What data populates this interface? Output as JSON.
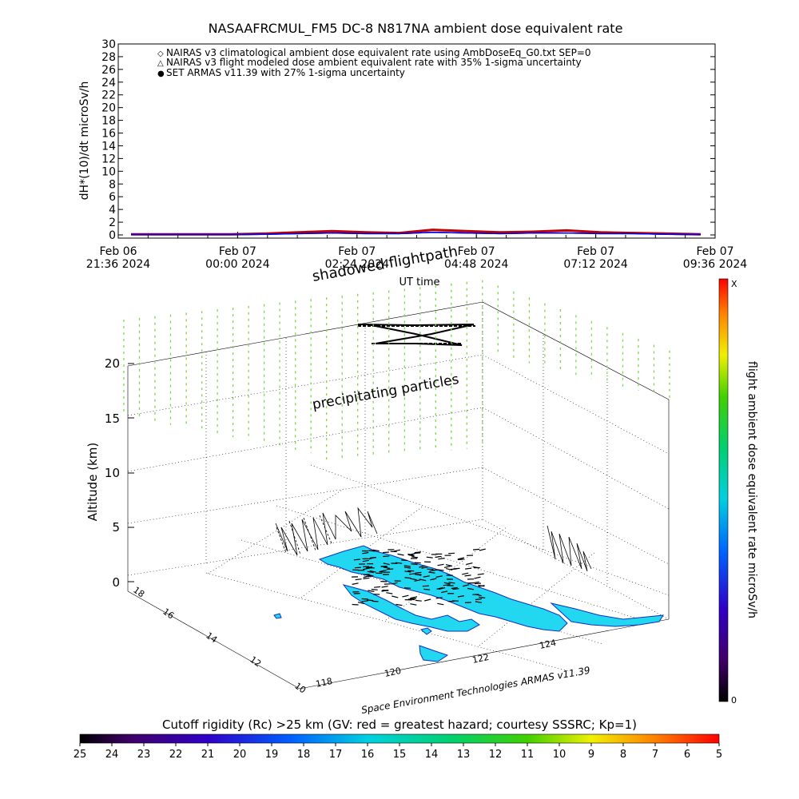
{
  "title": "NASAAFRCMUL_FM5 DC-8   N817NA ambient dose equivalent rate",
  "top_chart": {
    "ylabel": "dH*(10)/dt microSv/h",
    "xlabel": "UT time",
    "legend": [
      {
        "symbol": "◇",
        "color": "#c00000",
        "text": "NAIRAS v3 climatological ambient dose equivalent rate using AmbDoseEq_G0.txt SEP=0"
      },
      {
        "symbol": "△",
        "color": "#000000",
        "text": "NAIRAS v3 flight modeled dose ambient equivalent rate with 35% 1-sigma uncertainty"
      },
      {
        "symbol": "●",
        "color": "#0000ff",
        "text": "SET ARMAS v11.39 with 27% 1-sigma uncertainty"
      }
    ],
    "y_ticks": [
      "0",
      "2",
      "4",
      "6",
      "8",
      "10",
      "12",
      "14",
      "16",
      "18",
      "20",
      "22",
      "24",
      "26",
      "28",
      "30"
    ],
    "x_ticks": [
      {
        "line1": "Feb 06",
        "line2": "21:36 2024"
      },
      {
        "line1": "Feb 07",
        "line2": "00:00 2024"
      },
      {
        "line1": "Feb 07",
        "line2": "02:24 2024"
      },
      {
        "line1": "Feb 07",
        "line2": "04:48 2024"
      },
      {
        "line1": "Feb 07",
        "line2": "07:12 2024"
      },
      {
        "line1": "Feb 07",
        "line2": "09:36 2024"
      }
    ]
  },
  "chart_data": {
    "type": "line",
    "title": "NASAAFRCMUL_FM5 DC-8   N817NA ambient dose equivalent rate",
    "xlabel": "UT time",
    "ylabel": "dH*(10)/dt microSv/h",
    "ylim": [
      0,
      30
    ],
    "x": [
      "21:36",
      "22:30",
      "23:30",
      "00:30",
      "01:30",
      "02:24",
      "03:00",
      "03:40",
      "04:20",
      "04:48",
      "05:20",
      "06:00",
      "06:40",
      "07:12",
      "07:50",
      "08:30",
      "09:00",
      "09:30"
    ],
    "series": [
      {
        "name": "NAIRAS v3 climatological ambient dose equivalent rate using AmbDoseEq_G0.txt SEP=0",
        "values": [
          0.1,
          0.1,
          0.1,
          0.1,
          0.2,
          0.4,
          0.6,
          0.4,
          0.3,
          0.8,
          0.6,
          0.4,
          0.5,
          0.7,
          0.4,
          0.3,
          0.2,
          0.1
        ]
      },
      {
        "name": "NAIRAS v3 flight modeled dose ambient equivalent rate with 35% 1-sigma uncertainty",
        "values": [
          0.05,
          0.05,
          0.05,
          0.05,
          0.1,
          0.2,
          0.3,
          0.2,
          0.2,
          0.4,
          0.3,
          0.2,
          0.3,
          0.3,
          0.2,
          0.2,
          0.1,
          0.05
        ]
      },
      {
        "name": "SET ARMAS v11.39 with 27% 1-sigma uncertainty",
        "values": [
          0.05,
          0.05,
          0.05,
          0.05,
          0.1,
          0.2,
          0.3,
          0.2,
          0.2,
          0.4,
          0.3,
          0.2,
          0.3,
          0.3,
          0.2,
          0.2,
          0.1,
          0.05
        ]
      }
    ]
  },
  "panel3d": {
    "annotations": {
      "shadowed_flightpath": "shadowed flightpath",
      "precipitating_particles": "precipitating particles"
    },
    "altitude_label": "Altitude (km)",
    "altitude_ticks": [
      "0",
      "5",
      "10",
      "15",
      "20"
    ],
    "lat_ticks": [
      "10",
      "12",
      "14",
      "16",
      "18"
    ],
    "lon_ticks": [
      "118",
      "120",
      "122",
      "124"
    ],
    "credit": "Space Environment Technologies ARMAS v11.39"
  },
  "side_colorbar": {
    "label": "flight ambient dose equivalent rate microSv/h",
    "top": "X",
    "bottom": "0"
  },
  "bottom_colorbar": {
    "title": "Cutoff rigidity (Rc) >25 km (GV: red = greatest hazard; courtesy SSSRC; Kp=1)",
    "ticks": [
      "25",
      "24",
      "23",
      "22",
      "21",
      "20",
      "19",
      "18",
      "17",
      "16",
      "15",
      "14",
      "13",
      "12",
      "11",
      "10",
      "9",
      "8",
      "7",
      "6",
      "5"
    ]
  },
  "colors": {
    "nairas_clim": "#c00000",
    "particles": "#7cd84a",
    "land": "#22d8f0",
    "coast": "#1030c0"
  }
}
